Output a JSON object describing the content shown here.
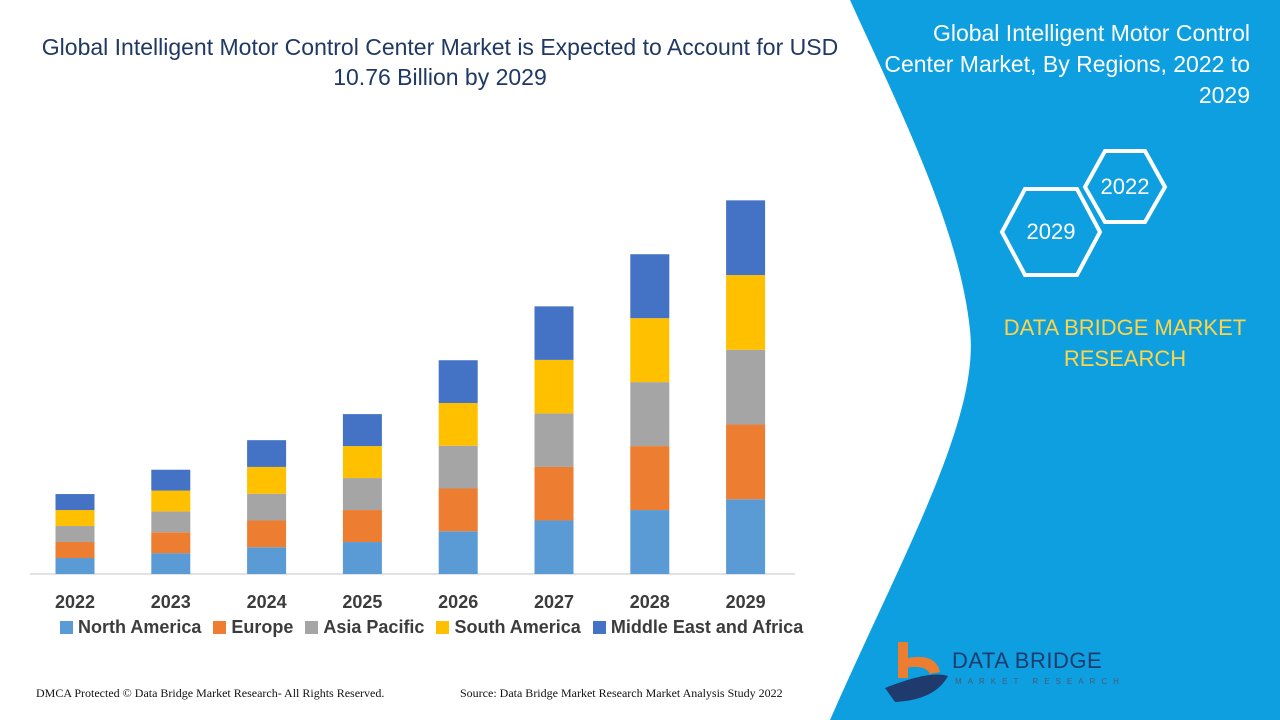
{
  "title": "Global Intelligent Motor Control Center Market is Expected to Account for USD 10.76 Billion by 2029",
  "side_panel": {
    "title": "Global Intelligent Motor Control Center Market, By Regions, 2022 to 2029",
    "hex_labels": [
      "2022",
      "2029"
    ],
    "brand": "DATA BRIDGE MARKET RESEARCH",
    "logo_text": "DATA BRIDGE",
    "logo_subtext": "MARKET RESEARCH",
    "color": "#0d9fe0"
  },
  "footer": {
    "left": "DMCA Protected © Data Bridge Market Research- All Rights Reserved.",
    "right": "Source: Data Bridge Market Research Market Analysis Study 2022"
  },
  "chart_data": {
    "type": "bar",
    "stacked": true,
    "title": "Global Intelligent Motor Control Center Market is Expected to Account for USD 10.76 Billion by 2029",
    "xlabel": "",
    "ylabel": "",
    "ylim": [
      0,
      10.76
    ],
    "grid": false,
    "legend_placement": "bottom",
    "categories": [
      "2022",
      "2023",
      "2024",
      "2025",
      "2026",
      "2027",
      "2028",
      "2029"
    ],
    "series": [
      {
        "name": "North America",
        "color": "#5b9bd5",
        "values": [
          0.46,
          0.6,
          0.77,
          0.92,
          1.23,
          1.54,
          1.84,
          2.15
        ]
      },
      {
        "name": "Europe",
        "color": "#ed7d31",
        "values": [
          0.46,
          0.6,
          0.77,
          0.92,
          1.23,
          1.54,
          1.84,
          2.15
        ]
      },
      {
        "name": "Asia Pacific",
        "color": "#a5a5a5",
        "values": [
          0.46,
          0.6,
          0.77,
          0.92,
          1.23,
          1.54,
          1.84,
          2.15
        ]
      },
      {
        "name": "South America",
        "color": "#ffc000",
        "values": [
          0.46,
          0.6,
          0.77,
          0.92,
          1.23,
          1.54,
          1.84,
          2.15
        ]
      },
      {
        "name": "Middle East and Africa",
        "color": "#4472c4",
        "values": [
          0.46,
          0.6,
          0.77,
          0.92,
          1.23,
          1.54,
          1.84,
          2.15
        ]
      }
    ]
  }
}
